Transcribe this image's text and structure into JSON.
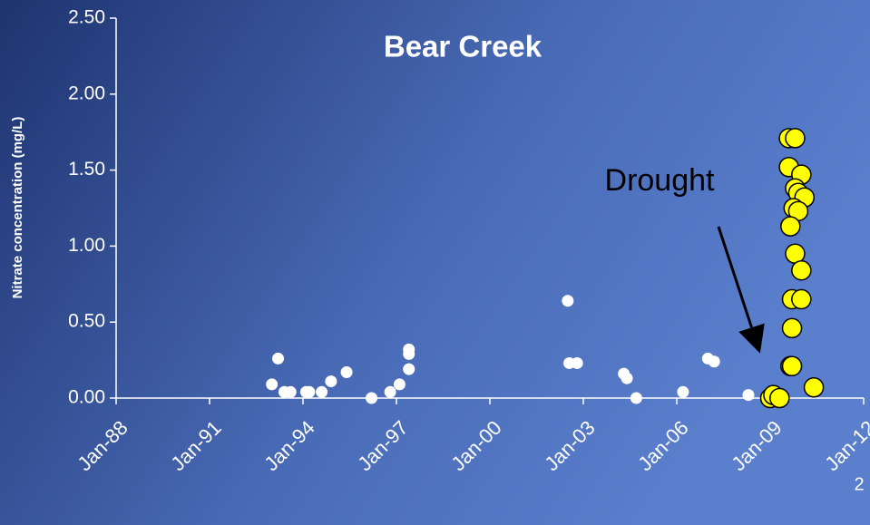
{
  "chart_data": {
    "type": "scatter",
    "title": "Bear Creek",
    "ylabel": "Nitrate concentration (mg/L)",
    "annotation": "Drought",
    "page_number": "2",
    "xlim": [
      1988,
      2012
    ],
    "xticks": [
      {
        "value": 1988,
        "label": "Jan-88"
      },
      {
        "value": 1991,
        "label": "Jan-91"
      },
      {
        "value": 1994,
        "label": "Jan-94"
      },
      {
        "value": 1997,
        "label": "Jan-97"
      },
      {
        "value": 2000,
        "label": "Jan-00"
      },
      {
        "value": 2003,
        "label": "Jan-03"
      },
      {
        "value": 2006,
        "label": "Jan-06"
      },
      {
        "value": 2009,
        "label": "Jan-09"
      },
      {
        "value": 2012,
        "label": "Jan-12"
      }
    ],
    "ylim": [
      0,
      2.5
    ],
    "yticks": [
      {
        "value": 0,
        "label": "0.00"
      },
      {
        "value": 0.5,
        "label": "0.50"
      },
      {
        "value": 1,
        "label": "1.00"
      },
      {
        "value": 1.5,
        "label": "1.50"
      },
      {
        "value": 2,
        "label": "2.00"
      },
      {
        "value": 2.5,
        "label": "2.50"
      }
    ],
    "series": [
      {
        "color": "#ffffff",
        "x": [
          1993.0,
          1993.2,
          1993.4,
          1993.6,
          1994.1,
          1994.2,
          1994.6,
          1994.9,
          1995.4,
          1996.2,
          1996.8,
          1997.1,
          1997.4,
          1997.4,
          1997.4,
          2002.5,
          2002.55,
          2002.8,
          2004.3,
          2004.4,
          2004.7,
          2006.2,
          2007.0,
          2007.2,
          2008.3
        ],
        "values": [
          0.09,
          0.26,
          0.04,
          0.04,
          0.04,
          0.04,
          0.04,
          0.11,
          0.17,
          0.0,
          0.04,
          0.09,
          0.19,
          0.29,
          0.32,
          0.64,
          0.23,
          0.23,
          0.16,
          0.13,
          0.0,
          0.04,
          0.26,
          0.24,
          0.02
        ]
      },
      {
        "color": "#ffff00",
        "x": [
          2009.0,
          2009.1,
          2009.3,
          2009.6,
          2009.8,
          2009.6,
          2010.0,
          2009.8,
          2009.9,
          2010.1,
          2009.75,
          2009.9,
          2009.65,
          2009.8,
          2010.0,
          2009.7,
          2010.0,
          2009.7,
          2009.65,
          2009.7,
          2010.4
        ],
        "values": [
          0.0,
          0.02,
          0.0,
          1.71,
          1.71,
          1.52,
          1.47,
          1.38,
          1.35,
          1.32,
          1.25,
          1.23,
          1.13,
          0.95,
          0.84,
          0.65,
          0.65,
          0.46,
          0.21,
          0.21,
          0.07
        ]
      }
    ]
  }
}
